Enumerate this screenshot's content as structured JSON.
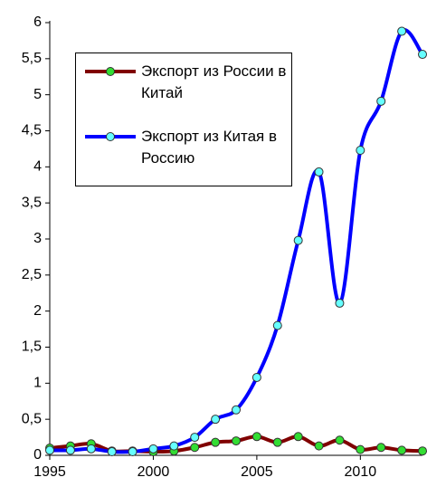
{
  "chart_data": {
    "type": "line",
    "x": [
      1995,
      1996,
      1997,
      1998,
      1999,
      2000,
      2001,
      2002,
      2003,
      2004,
      2005,
      2006,
      2007,
      2008,
      2009,
      2010,
      2011,
      2012,
      2013
    ],
    "series": [
      {
        "name": "Экспорт из России в Китай",
        "color": "#800000",
        "marker_color": "#33dd33",
        "values": [
          0.1,
          0.13,
          0.16,
          0.06,
          0.06,
          0.05,
          0.06,
          0.11,
          0.18,
          0.2,
          0.26,
          0.18,
          0.26,
          0.13,
          0.21,
          0.08,
          0.11,
          0.07,
          0.06
        ]
      },
      {
        "name": "Экспорт из Китая в Россию",
        "color": "#0000ff",
        "marker_color": "#66ffff",
        "values": [
          0.07,
          0.07,
          0.09,
          0.05,
          0.05,
          0.09,
          0.13,
          0.25,
          0.5,
          0.63,
          1.08,
          1.8,
          2.98,
          3.93,
          2.11,
          4.23,
          4.91,
          5.88,
          5.56
        ]
      }
    ],
    "xlim": [
      1995,
      2013
    ],
    "xticks": [
      1995,
      2000,
      2005,
      2010
    ],
    "ylim": [
      0,
      6
    ],
    "yticks": [
      0,
      {
        "value": 0.5,
        "label": "0,5"
      },
      1,
      {
        "value": 1.5,
        "label": "1,5"
      },
      2,
      {
        "value": 2.5,
        "label": "2,5"
      },
      3,
      {
        "value": 3.5,
        "label": "3,5"
      },
      4,
      {
        "value": 4.5,
        "label": "4,5"
      },
      5,
      {
        "value": 5.5,
        "label": "5,5"
      },
      6
    ],
    "grid": false,
    "legend": "upper left"
  }
}
